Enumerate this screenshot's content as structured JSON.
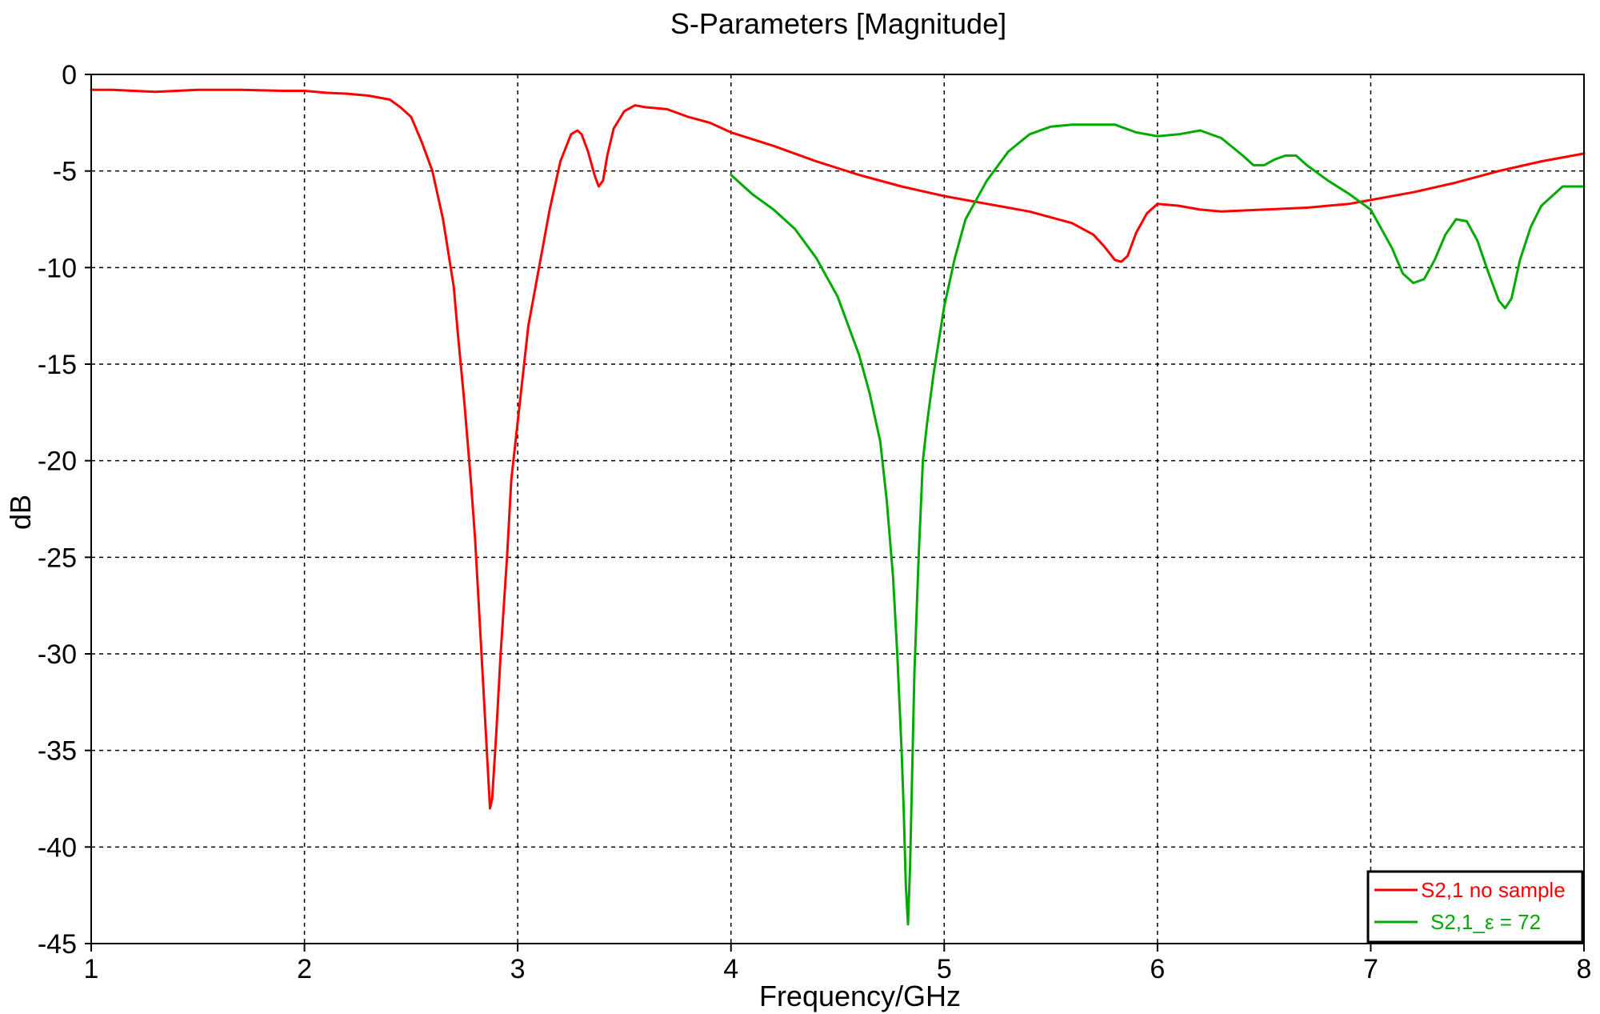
{
  "chart_data": {
    "type": "line",
    "title": "S-Parameters [Magnitude]",
    "xlabel": "Frequency/GHz",
    "ylabel": "dB",
    "xlim": [
      1,
      8
    ],
    "ylim": [
      -45,
      0
    ],
    "x_ticks": [
      1,
      2,
      3,
      4,
      5,
      6,
      7,
      8
    ],
    "y_ticks": [
      0,
      -5,
      -10,
      -15,
      -20,
      -25,
      -30,
      -35,
      -40,
      -45
    ],
    "grid": true,
    "legend_position": "bottom-right",
    "series": [
      {
        "name": "S2,1 no sample",
        "color": "#ff0000",
        "x": [
          1.0,
          1.1,
          1.2,
          1.3,
          1.5,
          1.7,
          1.9,
          2.0,
          2.1,
          2.2,
          2.3,
          2.4,
          2.45,
          2.5,
          2.55,
          2.6,
          2.65,
          2.7,
          2.72,
          2.75,
          2.78,
          2.8,
          2.82,
          2.85,
          2.87,
          2.88,
          2.9,
          2.92,
          2.95,
          2.97,
          3.0,
          3.05,
          3.1,
          3.15,
          3.2,
          3.25,
          3.28,
          3.3,
          3.33,
          3.36,
          3.38,
          3.4,
          3.42,
          3.45,
          3.5,
          3.55,
          3.6,
          3.7,
          3.8,
          3.9,
          4.0,
          4.2,
          4.4,
          4.6,
          4.8,
          5.0,
          5.2,
          5.4,
          5.6,
          5.7,
          5.75,
          5.8,
          5.83,
          5.86,
          5.9,
          5.95,
          6.0,
          6.1,
          6.2,
          6.3,
          6.5,
          6.7,
          6.9,
          7.0,
          7.2,
          7.4,
          7.6,
          7.8,
          8.0
        ],
        "values": [
          -0.8,
          -0.8,
          -0.85,
          -0.9,
          -0.8,
          -0.8,
          -0.85,
          -0.85,
          -0.95,
          -1.0,
          -1.1,
          -1.3,
          -1.7,
          -2.2,
          -3.5,
          -5.0,
          -7.5,
          -11.0,
          -13.5,
          -17.0,
          -21.0,
          -24.0,
          -28.0,
          -34.0,
          -38.0,
          -37.5,
          -34.0,
          -30.0,
          -25.0,
          -21.0,
          -18.0,
          -13.0,
          -10.0,
          -7.0,
          -4.5,
          -3.1,
          -2.9,
          -3.1,
          -4.0,
          -5.2,
          -5.8,
          -5.5,
          -4.2,
          -2.8,
          -1.9,
          -1.6,
          -1.7,
          -1.8,
          -2.2,
          -2.5,
          -3.0,
          -3.7,
          -4.5,
          -5.2,
          -5.8,
          -6.3,
          -6.7,
          -7.1,
          -7.7,
          -8.3,
          -8.9,
          -9.6,
          -9.7,
          -9.4,
          -8.2,
          -7.2,
          -6.7,
          -6.8,
          -7.0,
          -7.1,
          -7.0,
          -6.9,
          -6.7,
          -6.5,
          -6.1,
          -5.6,
          -5.0,
          -4.5,
          -4.1
        ]
      },
      {
        "name": "S2,1_ε = 72",
        "color": "#00aa00",
        "x": [
          4.0,
          4.1,
          4.2,
          4.3,
          4.4,
          4.5,
          4.55,
          4.6,
          4.65,
          4.7,
          4.73,
          4.76,
          4.78,
          4.8,
          4.81,
          4.82,
          4.83,
          4.84,
          4.85,
          4.86,
          4.88,
          4.9,
          4.92,
          4.95,
          5.0,
          5.05,
          5.1,
          5.2,
          5.3,
          5.4,
          5.5,
          5.6,
          5.7,
          5.8,
          5.9,
          6.0,
          6.1,
          6.2,
          6.3,
          6.4,
          6.45,
          6.5,
          6.55,
          6.6,
          6.65,
          6.7,
          6.8,
          6.9,
          7.0,
          7.1,
          7.15,
          7.2,
          7.25,
          7.3,
          7.35,
          7.4,
          7.45,
          7.5,
          7.55,
          7.6,
          7.63,
          7.66,
          7.7,
          7.75,
          7.8,
          7.9,
          8.0
        ],
        "values": [
          -5.2,
          -6.2,
          -7.0,
          -8.0,
          -9.5,
          -11.5,
          -13.0,
          -14.5,
          -16.5,
          -19.0,
          -22.0,
          -26.0,
          -30.0,
          -35.0,
          -38.0,
          -42.0,
          -44.0,
          -41.0,
          -36.0,
          -31.0,
          -25.0,
          -20.0,
          -18.0,
          -15.5,
          -12.0,
          -9.5,
          -7.5,
          -5.5,
          -4.0,
          -3.1,
          -2.7,
          -2.6,
          -2.6,
          -2.6,
          -3.0,
          -3.2,
          -3.1,
          -2.9,
          -3.3,
          -4.2,
          -4.7,
          -4.7,
          -4.4,
          -4.2,
          -4.2,
          -4.7,
          -5.5,
          -6.2,
          -7.0,
          -9.0,
          -10.3,
          -10.8,
          -10.6,
          -9.6,
          -8.3,
          -7.5,
          -7.6,
          -8.6,
          -10.2,
          -11.7,
          -12.1,
          -11.6,
          -9.6,
          -7.9,
          -6.8,
          -5.8,
          -5.8
        ]
      }
    ]
  }
}
